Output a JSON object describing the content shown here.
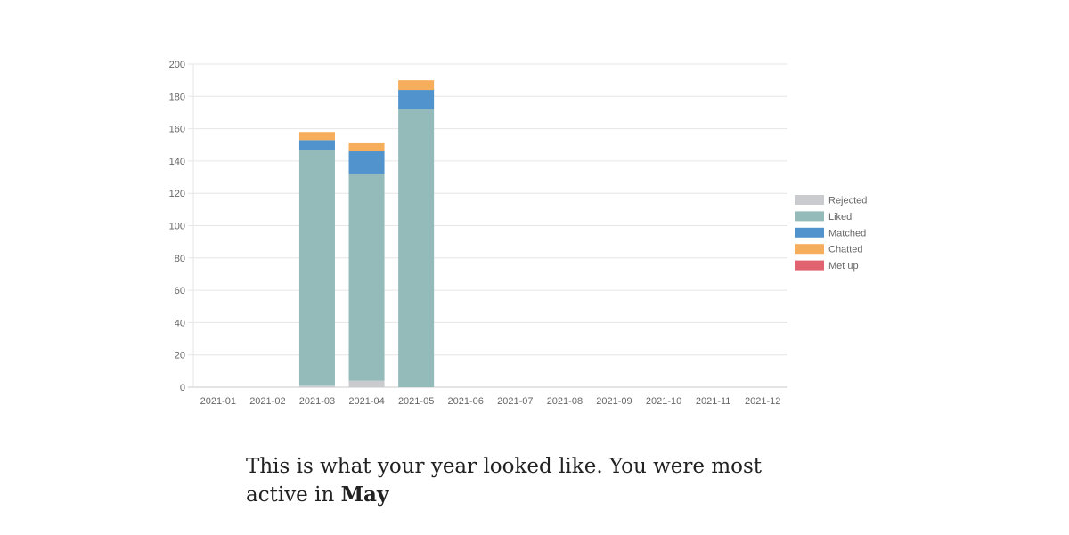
{
  "chart_data": {
    "type": "bar",
    "stacked": true,
    "title": "",
    "xlabel": "",
    "ylabel": "",
    "categories": [
      "2021-01",
      "2021-02",
      "2021-03",
      "2021-04",
      "2021-05",
      "2021-06",
      "2021-07",
      "2021-08",
      "2021-09",
      "2021-10",
      "2021-11",
      "2021-12"
    ],
    "ylim": [
      0,
      200
    ],
    "yticks": [
      0,
      20,
      40,
      60,
      80,
      100,
      120,
      140,
      160,
      180,
      200
    ],
    "grid": true,
    "legend_position": "right",
    "series": [
      {
        "name": "Rejected",
        "color": "#c9cbcf",
        "values": [
          0,
          0,
          1,
          4,
          0,
          0,
          0,
          0,
          0,
          0,
          0,
          0
        ]
      },
      {
        "name": "Liked",
        "color": "#94bbba",
        "values": [
          0,
          0,
          146,
          128,
          172,
          0,
          0,
          0,
          0,
          0,
          0,
          0
        ]
      },
      {
        "name": "Matched",
        "color": "#5193cc",
        "values": [
          0,
          0,
          6,
          14,
          12,
          0,
          0,
          0,
          0,
          0,
          0,
          0
        ]
      },
      {
        "name": "Chatted",
        "color": "#f6ad5c",
        "values": [
          0,
          0,
          5,
          5,
          6,
          0,
          0,
          0,
          0,
          0,
          0,
          0
        ]
      },
      {
        "name": "Met up",
        "color": "#e0636f",
        "values": [
          0,
          0,
          0,
          0,
          0,
          0,
          0,
          0,
          0,
          0,
          0,
          0
        ]
      }
    ]
  },
  "summary": {
    "text": "This is what your year looked like. You were most active in ",
    "highlight": "May"
  }
}
